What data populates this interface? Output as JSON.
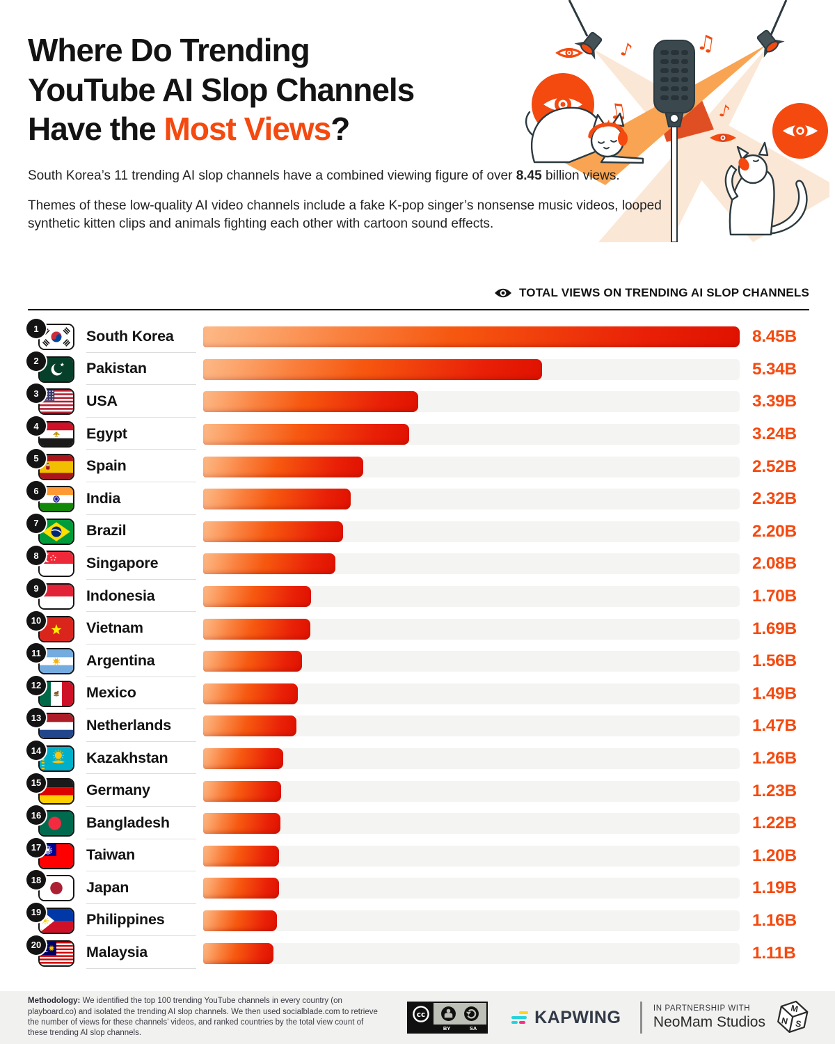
{
  "header": {
    "title_line1": "Where Do Trending",
    "title_line2": "YouTube AI Slop Channels",
    "title_line3_prefix": "Have the ",
    "title_line3_highlight": "Most Views",
    "title_line3_suffix": "?",
    "intro_p1_before": "South Korea’s 11 trending AI slop channels have a combined viewing figure of over ",
    "intro_p1_bold": "8.45",
    "intro_p1_after": " billion views.",
    "intro_p2": "Themes of these low-quality AI video channels include a fake K-pop singer’s nonsense music videos, looped synthetic kitten clips and animals fighting each other with cartoon sound effects."
  },
  "chart_header": {
    "label": "TOTAL VIEWS ON TRENDING AI SLOP CHANNELS"
  },
  "chart_data": {
    "type": "bar",
    "title": "TOTAL VIEWS ON TRENDING AI SLOP CHANNELS",
    "unit": "billion views",
    "max_value": 8.45,
    "rows": [
      {
        "rank": 1,
        "country": "South Korea",
        "flag": "kr",
        "value": 8.45,
        "label": "8.45B"
      },
      {
        "rank": 2,
        "country": "Pakistan",
        "flag": "pk",
        "value": 5.34,
        "label": "5.34B"
      },
      {
        "rank": 3,
        "country": "USA",
        "flag": "us",
        "value": 3.39,
        "label": "3.39B"
      },
      {
        "rank": 4,
        "country": "Egypt",
        "flag": "eg",
        "value": 3.24,
        "label": "3.24B"
      },
      {
        "rank": 5,
        "country": "Spain",
        "flag": "es",
        "value": 2.52,
        "label": "2.52B"
      },
      {
        "rank": 6,
        "country": "India",
        "flag": "in",
        "value": 2.32,
        "label": "2.32B"
      },
      {
        "rank": 7,
        "country": "Brazil",
        "flag": "br",
        "value": 2.2,
        "label": "2.20B"
      },
      {
        "rank": 8,
        "country": "Singapore",
        "flag": "sg",
        "value": 2.08,
        "label": "2.08B"
      },
      {
        "rank": 9,
        "country": "Indonesia",
        "flag": "id",
        "value": 1.7,
        "label": "1.70B"
      },
      {
        "rank": 10,
        "country": "Vietnam",
        "flag": "vn",
        "value": 1.69,
        "label": "1.69B"
      },
      {
        "rank": 11,
        "country": "Argentina",
        "flag": "ar",
        "value": 1.56,
        "label": "1.56B"
      },
      {
        "rank": 12,
        "country": "Mexico",
        "flag": "mx",
        "value": 1.49,
        "label": "1.49B"
      },
      {
        "rank": 13,
        "country": "Netherlands",
        "flag": "nl",
        "value": 1.47,
        "label": "1.47B"
      },
      {
        "rank": 14,
        "country": "Kazakhstan",
        "flag": "kz",
        "value": 1.26,
        "label": "1.26B"
      },
      {
        "rank": 15,
        "country": "Germany",
        "flag": "de",
        "value": 1.23,
        "label": "1.23B"
      },
      {
        "rank": 16,
        "country": "Bangladesh",
        "flag": "bd",
        "value": 1.22,
        "label": "1.22B"
      },
      {
        "rank": 17,
        "country": "Taiwan",
        "flag": "tw",
        "value": 1.2,
        "label": "1.20B"
      },
      {
        "rank": 18,
        "country": "Japan",
        "flag": "jp",
        "value": 1.19,
        "label": "1.19B"
      },
      {
        "rank": 19,
        "country": "Philippines",
        "flag": "ph",
        "value": 1.16,
        "label": "1.16B"
      },
      {
        "rank": 20,
        "country": "Malaysia",
        "flag": "my",
        "value": 1.11,
        "label": "1.11B"
      }
    ]
  },
  "footer": {
    "methodology_label": "Methodology:",
    "methodology_text": " We identified the top 100 trending YouTube channels in every country (on playboard.co) and isolated the trending AI slop channels. We then used socialblade.com to retrieve the number of views for these channels’ videos, and ranked countries by the total view count of these trending AI slop channels.",
    "license": {
      "by": "BY",
      "sa": "SA"
    },
    "kapwing": "KAPWING",
    "partnership_line1": "IN PARTNERSHIP WITH",
    "partnership_line2": "NeoMam Studios"
  },
  "colors": {
    "accent": "#f4490f",
    "bar_gradient_start": "#fc8d3c",
    "bar_gradient_end": "#df1200",
    "bar_track": "#f4f4f2",
    "footer_bg": "#f1f1ef",
    "text": "#131313"
  }
}
